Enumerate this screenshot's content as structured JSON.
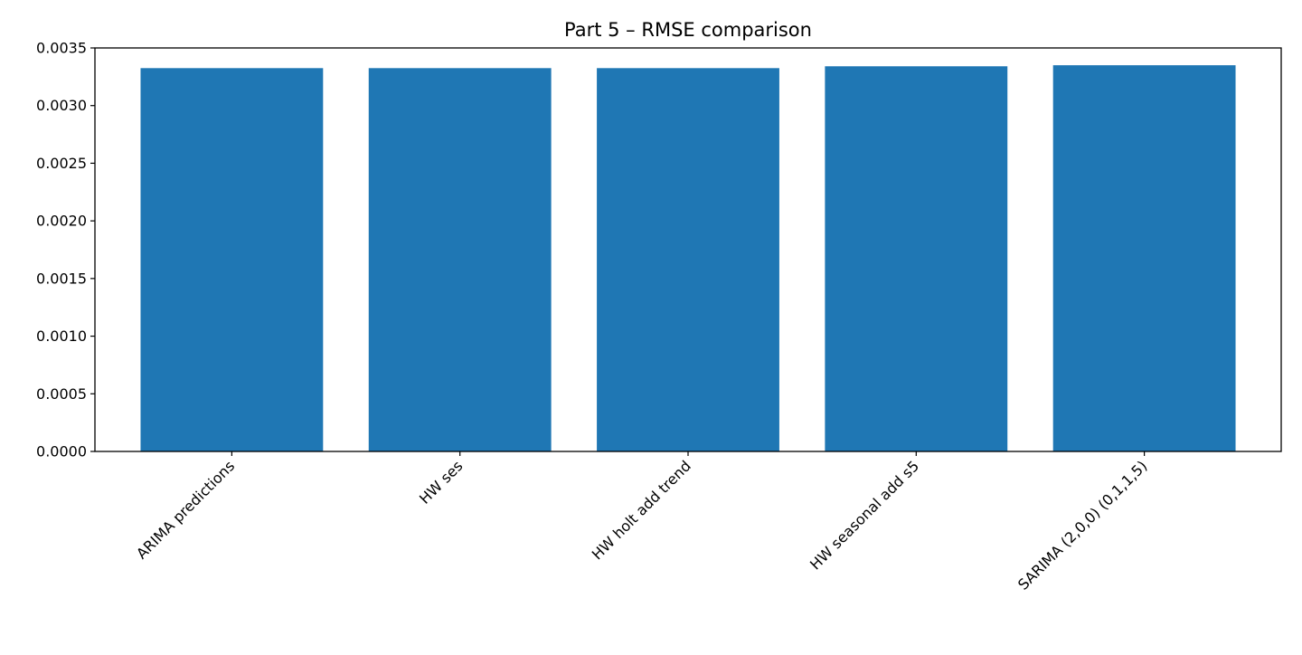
{
  "chart_data": {
    "type": "bar",
    "title": "Part 5 – RMSE comparison",
    "xlabel": "",
    "ylabel": "",
    "categories": [
      "ARIMA predictions",
      "HW ses",
      "HW holt add trend",
      "HW seasonal add s5",
      "SARIMA (2,0,0) (0,1,1,5)"
    ],
    "values": [
      0.003325,
      0.003325,
      0.003325,
      0.003341,
      0.00335
    ],
    "ylim": [
      0,
      0.0035
    ],
    "yticks": [
      "0.0000",
      "0.0005",
      "0.0010",
      "0.0015",
      "0.0020",
      "0.0025",
      "0.0030",
      "0.0035"
    ],
    "grid": false,
    "legend": "none",
    "bar_color": "#1f77b4",
    "x_tick_rotation_deg": 45
  }
}
